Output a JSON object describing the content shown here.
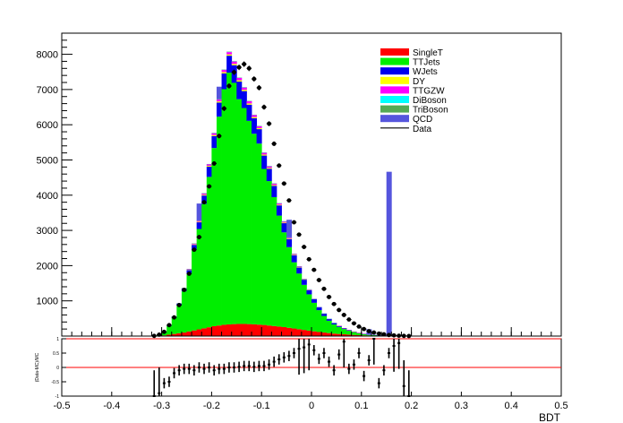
{
  "chart_data": {
    "type": "bar",
    "stacked": true,
    "xlabel": "BDT",
    "ratio_ylabel": "(Data-MC)/MC",
    "xlim": [
      -0.5,
      0.5
    ],
    "ylim": [
      0,
      8600
    ],
    "ratio_ylim": [
      -1,
      1
    ],
    "x_ticks": [
      "-0.5",
      "-0.4",
      "-0.3",
      "-0.2",
      "-0.1",
      "0",
      "0.1",
      "0.2",
      "0.3",
      "0.4",
      "0.5"
    ],
    "y_ticks": [
      "1000",
      "2000",
      "3000",
      "4000",
      "5000",
      "6000",
      "7000",
      "8000"
    ],
    "ratio_y_ticks": [
      "-1",
      "-0.5",
      "0",
      "0.5",
      "1"
    ],
    "bin_width": 0.01,
    "bins_x": [
      -0.315,
      -0.305,
      -0.295,
      -0.285,
      -0.275,
      -0.265,
      -0.255,
      -0.245,
      -0.235,
      -0.225,
      -0.215,
      -0.205,
      -0.195,
      -0.185,
      -0.175,
      -0.165,
      -0.155,
      -0.145,
      -0.135,
      -0.125,
      -0.115,
      -0.105,
      -0.095,
      -0.085,
      -0.075,
      -0.065,
      -0.055,
      -0.045,
      -0.035,
      -0.025,
      -0.015,
      -0.005,
      0.005,
      0.015,
      0.025,
      0.035,
      0.045,
      0.055,
      0.065,
      0.075,
      0.085,
      0.095,
      0.105,
      0.115,
      0.125,
      0.135,
      0.145,
      0.155,
      0.165,
      0.175,
      0.185,
      0.195
    ],
    "series": [
      {
        "name": "SingleT",
        "color": "#ff0000",
        "values": [
          5,
          10,
          20,
          40,
          60,
          80,
          100,
          130,
          160,
          190,
          220,
          250,
          280,
          300,
          320,
          330,
          340,
          345,
          345,
          340,
          335,
          325,
          315,
          300,
          285,
          270,
          255,
          235,
          215,
          195,
          175,
          155,
          135,
          115,
          100,
          85,
          70,
          60,
          50,
          40,
          32,
          25,
          20,
          15,
          12,
          10,
          8,
          6,
          5,
          4,
          3,
          2
        ]
      },
      {
        "name": "TTJets",
        "color": "#00ee00",
        "values": [
          10,
          30,
          90,
          250,
          460,
          790,
          1170,
          1630,
          2280,
          2850,
          3530,
          4270,
          5060,
          5930,
          6690,
          7150,
          6850,
          6380,
          6130,
          5770,
          5410,
          5140,
          4430,
          4100,
          3660,
          3150,
          2690,
          2290,
          1880,
          1580,
          1280,
          1030,
          810,
          620,
          470,
          350,
          260,
          200,
          150,
          110,
          80,
          55,
          35,
          20,
          14,
          10,
          8,
          6,
          5,
          4,
          3,
          2
        ]
      },
      {
        "name": "WJets",
        "color": "#0000ee",
        "values": [
          2,
          4,
          8,
          20,
          30,
          50,
          80,
          110,
          150,
          190,
          240,
          290,
          340,
          400,
          450,
          480,
          500,
          500,
          480,
          460,
          440,
          410,
          380,
          350,
          320,
          290,
          260,
          230,
          200,
          170,
          145,
          120,
          100,
          80,
          65,
          50,
          40,
          30,
          25,
          20,
          15,
          12,
          10,
          8,
          6,
          5,
          4,
          3,
          2,
          1,
          1,
          1
        ]
      },
      {
        "name": "DY",
        "color": "#ffff00",
        "values": [
          0,
          0,
          1,
          2,
          3,
          5,
          7,
          10,
          13,
          16,
          20,
          24,
          28,
          32,
          35,
          37,
          38,
          38,
          37,
          35,
          33,
          30,
          28,
          25,
          22,
          20,
          18,
          15,
          13,
          11,
          9,
          7,
          6,
          5,
          4,
          3,
          2,
          2,
          1,
          1,
          1,
          1,
          0,
          0,
          0,
          0,
          0,
          0,
          0,
          0,
          0,
          0
        ]
      },
      {
        "name": "TTGZW",
        "color": "#ff00ff",
        "values": [
          0,
          1,
          2,
          4,
          7,
          10,
          14,
          19,
          25,
          31,
          38,
          45,
          52,
          58,
          63,
          66,
          67,
          67,
          65,
          62,
          58,
          54,
          50,
          45,
          40,
          36,
          32,
          28,
          24,
          20,
          17,
          14,
          12,
          10,
          8,
          6,
          5,
          4,
          3,
          2,
          2,
          1,
          1,
          1,
          0,
          0,
          0,
          0,
          0,
          0,
          0,
          0
        ]
      },
      {
        "name": "DiBoson",
        "color": "#00ffff",
        "values": [
          0,
          0,
          0,
          1,
          1,
          2,
          2,
          3,
          4,
          5,
          5,
          6,
          7,
          8,
          8,
          9,
          9,
          9,
          8,
          8,
          7,
          7,
          6,
          6,
          5,
          5,
          4,
          4,
          3,
          3,
          2,
          2,
          2,
          1,
          1,
          1,
          1,
          0,
          0,
          0,
          0,
          0,
          0,
          0,
          0,
          0,
          0,
          0,
          0,
          0,
          0,
          0
        ]
      },
      {
        "name": "TriBoson",
        "color": "#55aa55",
        "values": [
          0,
          0,
          0,
          0,
          0,
          0,
          1,
          1,
          1,
          1,
          1,
          1,
          2,
          2,
          2,
          2,
          2,
          2,
          2,
          2,
          2,
          2,
          1,
          1,
          1,
          1,
          1,
          1,
          1,
          1,
          1,
          0,
          0,
          0,
          0,
          0,
          0,
          0,
          0,
          0,
          0,
          0,
          0,
          0,
          0,
          0,
          0,
          0,
          0,
          0,
          0,
          0
        ]
      },
      {
        "name": "QCD",
        "color": "#5555dd",
        "values": [
          0,
          0,
          0,
          0,
          0,
          0,
          0,
          0,
          0,
          480,
          0,
          0,
          0,
          350,
          0,
          0,
          0,
          0,
          0,
          0,
          0,
          0,
          0,
          0,
          0,
          0,
          0,
          500,
          0,
          0,
          0,
          0,
          0,
          0,
          0,
          0,
          0,
          0,
          0,
          0,
          0,
          0,
          0,
          150,
          0,
          0,
          0,
          4650,
          0,
          0,
          0,
          0
        ]
      }
    ],
    "data": {
      "name": "Data",
      "color": "#000000",
      "values": [
        5,
        40,
        120,
        310,
        530,
        880,
        1310,
        1770,
        2450,
        2810,
        3800,
        4250,
        4900,
        5680,
        6460,
        7100,
        7490,
        7630,
        7720,
        7600,
        7300,
        7050,
        6500,
        6030,
        5460,
        4840,
        4330,
        3850,
        3230,
        2880,
        2530,
        2180,
        1880,
        1590,
        1340,
        1110,
        910,
        740,
        600,
        470,
        360,
        270,
        200,
        140,
        100,
        70,
        50,
        30,
        20,
        10,
        5,
        2
      ]
    },
    "ratio": [
      -1,
      -0.9,
      -0.55,
      -0.5,
      -0.2,
      -0.1,
      -0.05,
      -0.05,
      -0.1,
      0,
      -0.05,
      0,
      -0.1,
      -0.05,
      -0.05,
      0,
      0,
      0.02,
      0.05,
      0.05,
      0.02,
      0.05,
      0.05,
      0.1,
      0.2,
      0.28,
      0.35,
      0.4,
      0.5,
      0.65,
      0.7,
      0.8,
      0.6,
      0.3,
      0.5,
      0.2,
      -0.1,
      0.45,
      0.9,
      -0.05,
      0.1,
      0.5,
      -0.3,
      0.25,
      1,
      -0.55,
      -0.1,
      0.5,
      0.75,
      0.85,
      -0.65,
      -1
    ],
    "legend": {
      "position": "top-right",
      "entries": [
        "SingleT",
        "TTJets",
        "WJets",
        "DY",
        "TTGZW",
        "DiBoson",
        "TriBoson",
        "QCD",
        "Data"
      ]
    }
  }
}
